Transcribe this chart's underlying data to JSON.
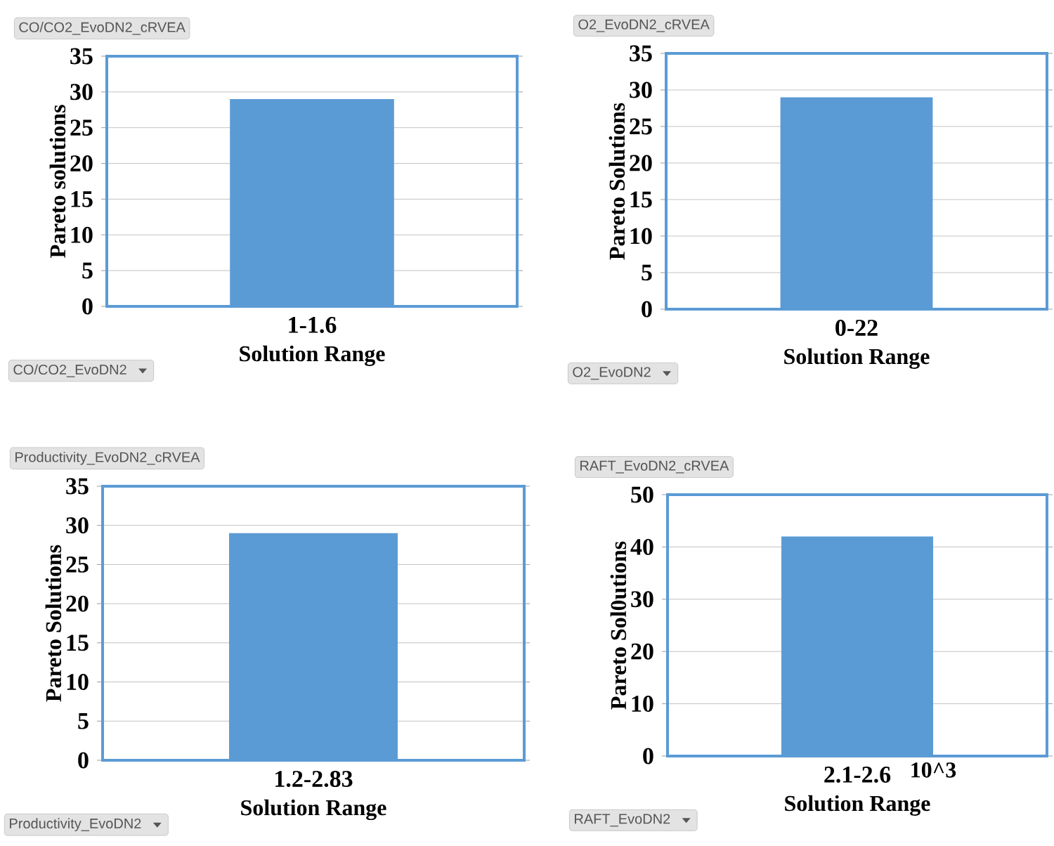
{
  "chart_data": [
    {
      "type": "bar",
      "title": "CO/CO2_EvoDN2_cRVEA",
      "categories": [
        "1-1.6"
      ],
      "values": [
        29
      ],
      "color": "#5b9bd5",
      "ylim": [
        0,
        35
      ],
      "yticks": [
        0,
        5,
        10,
        15,
        20,
        25,
        30,
        35
      ],
      "ylabel": "Pareto solutions",
      "xlabel": "Solution Range",
      "grid": "y",
      "annotations": [
        "CO/CO2_EvoDN2"
      ]
    },
    {
      "type": "bar",
      "title": "O2_EvoDN2_cRVEA",
      "categories": [
        "0-22"
      ],
      "values": [
        29
      ],
      "color": "#5b9bd5",
      "ylim": [
        0,
        35
      ],
      "yticks": [
        0,
        5,
        10,
        15,
        20,
        25,
        30,
        35
      ],
      "ylabel": "Pareto Solutions",
      "xlabel": "Solution Range",
      "grid": "y",
      "annotations": [
        "O2_EvoDN2"
      ]
    },
    {
      "type": "bar",
      "title": "Productivity_EvoDN2_cRVEA",
      "categories": [
        "1.2-2.83"
      ],
      "values": [
        29
      ],
      "color": "#5b9bd5",
      "ylim": [
        0,
        35
      ],
      "yticks": [
        0,
        5,
        10,
        15,
        20,
        25,
        30,
        35
      ],
      "ylabel": "Pareto Solutions",
      "xlabel": "Solution Range",
      "grid": "y",
      "annotations": [
        "Productivity_EvoDN2"
      ]
    },
    {
      "type": "bar",
      "title": "RAFT_EvoDN2_cRVEA",
      "categories": [
        "2.1-2.6"
      ],
      "values": [
        42
      ],
      "color": "#5b9bd5",
      "ylim": [
        0,
        50
      ],
      "yticks": [
        0,
        10,
        20,
        30,
        40,
        50
      ],
      "ylabel": "Pareto Sol0utions",
      "xlabel": "Solution Range",
      "grid": "y",
      "annotations": [
        "RAFT_EvoDN2",
        "10^3"
      ]
    }
  ]
}
